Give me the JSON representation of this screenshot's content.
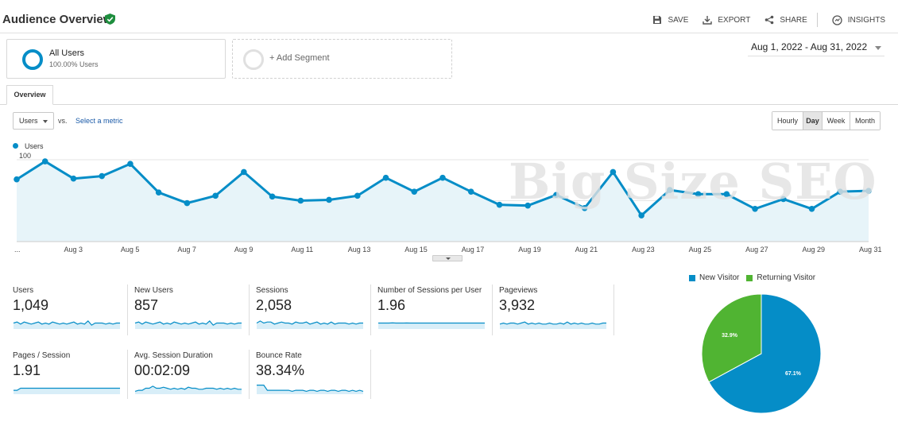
{
  "header": {
    "title": "Audience Overview",
    "actions": [
      "SAVE",
      "EXPORT",
      "SHARE",
      "INSIGHTS"
    ]
  },
  "segments": {
    "active": {
      "name": "All Users",
      "percent": "100.00% Users"
    },
    "add_label": "+ Add Segment"
  },
  "date_range": "Aug 1, 2022 - Aug 31, 2022",
  "tabs": [
    "Overview"
  ],
  "controls": {
    "metric": "Users",
    "vs": "vs.",
    "select_metric": "Select a metric",
    "periods": [
      "Hourly",
      "Day",
      "Week",
      "Month"
    ],
    "active_period": "Day"
  },
  "watermark": "Big Size SEO",
  "colors": {
    "accent": "#058dc7",
    "returning": "#50b432",
    "fill": "#e7f4f9"
  },
  "chart_data": [
    {
      "type": "area",
      "series": [
        {
          "name": "Users",
          "values": [
            76,
            98,
            77,
            80,
            95,
            60,
            47,
            56,
            85,
            55,
            50,
            51,
            56,
            78,
            61,
            78,
            61,
            45,
            44,
            57,
            41,
            85,
            32,
            63,
            58,
            58,
            40,
            52,
            40,
            61,
            62
          ]
        }
      ],
      "x": [
        "Aug 1",
        "Aug 2",
        "Aug 3",
        "Aug 4",
        "Aug 5",
        "Aug 6",
        "Aug 7",
        "Aug 8",
        "Aug 9",
        "Aug 10",
        "Aug 11",
        "Aug 12",
        "Aug 13",
        "Aug 14",
        "Aug 15",
        "Aug 16",
        "Aug 17",
        "Aug 18",
        "Aug 19",
        "Aug 20",
        "Aug 21",
        "Aug 22",
        "Aug 23",
        "Aug 24",
        "Aug 25",
        "Aug 26",
        "Aug 27",
        "Aug 28",
        "Aug 29",
        "Aug 30",
        "Aug 31"
      ],
      "x_tick_labels": [
        "...",
        "Aug 3",
        "Aug 5",
        "Aug 7",
        "Aug 9",
        "Aug 11",
        "Aug 13",
        "Aug 15",
        "Aug 17",
        "Aug 19",
        "Aug 21",
        "Aug 23",
        "Aug 25",
        "Aug 27",
        "Aug 29",
        "Aug 31"
      ],
      "y_ticks": [
        50,
        100
      ],
      "ylim": [
        0,
        100
      ],
      "grid": true,
      "legend": "top-left"
    },
    {
      "type": "pie",
      "labels": [
        "New Visitor",
        "Returning Visitor"
      ],
      "values": [
        67.1,
        32.9
      ],
      "value_labels": [
        "67.1%",
        "32.9%"
      ],
      "colors": [
        "#058dc7",
        "#50b432"
      ],
      "legend": "top"
    }
  ],
  "metrics": [
    {
      "name": "Users",
      "value": "1,049",
      "spark": [
        5,
        6,
        4,
        6,
        5,
        4,
        5,
        6,
        4,
        5,
        4,
        6,
        5,
        4,
        5,
        4,
        5,
        6,
        4,
        5,
        4,
        7,
        3,
        5,
        5,
        5,
        4,
        5,
        4,
        5,
        5
      ]
    },
    {
      "name": "New Users",
      "value": "857",
      "spark": [
        5,
        6,
        4,
        6,
        5,
        4,
        5,
        6,
        4,
        5,
        4,
        6,
        5,
        4,
        5,
        4,
        5,
        6,
        4,
        5,
        4,
        7,
        3,
        5,
        5,
        5,
        4,
        5,
        4,
        5,
        5
      ]
    },
    {
      "name": "Sessions",
      "value": "2,058",
      "spark": [
        5,
        7,
        5,
        6,
        6,
        4,
        5,
        6,
        5,
        5,
        4,
        6,
        5,
        5,
        6,
        4,
        5,
        6,
        4,
        5,
        4,
        6,
        4,
        5,
        5,
        5,
        4,
        5,
        4,
        5,
        5
      ]
    },
    {
      "name": "Number of Sessions per User",
      "value": "1.96",
      "spark": [
        5,
        5,
        5,
        5,
        5.2,
        5,
        5,
        5,
        5.1,
        5,
        5,
        5,
        5,
        5,
        5,
        5,
        5,
        5,
        5,
        5,
        5,
        5,
        5,
        5,
        5,
        5,
        5,
        5,
        5,
        5,
        5
      ]
    },
    {
      "name": "Pageviews",
      "value": "3,932",
      "spark": [
        4,
        5,
        4,
        5,
        5,
        4,
        5,
        6,
        4,
        5,
        4,
        5,
        4,
        4,
        5,
        4,
        4,
        5,
        4,
        6,
        4,
        5,
        4,
        5,
        4,
        4,
        5,
        4,
        4,
        5,
        5
      ]
    },
    {
      "name": "Pages / Session",
      "value": "1.91",
      "spark": [
        3,
        3,
        5,
        5,
        5,
        5,
        5,
        5,
        5,
        5,
        5,
        5,
        5,
        5,
        5,
        5,
        5,
        5,
        5,
        5,
        5,
        5,
        5,
        5,
        5,
        5,
        5,
        5,
        5,
        5,
        5
      ]
    },
    {
      "name": "Avg. Session Duration",
      "value": "00:02:09",
      "spark": [
        2,
        3,
        3,
        5,
        5,
        7,
        5,
        5,
        6,
        5,
        4,
        5,
        4,
        5,
        4,
        6,
        5,
        5,
        4,
        4,
        5,
        5,
        5,
        4,
        5,
        4,
        5,
        4,
        5,
        4,
        4
      ]
    },
    {
      "name": "Bounce Rate",
      "value": "38.34%",
      "spark": [
        8,
        8,
        8,
        3,
        3,
        3,
        3,
        3,
        3,
        3,
        2,
        3,
        3,
        3,
        2,
        3,
        3,
        2,
        3,
        3,
        2,
        3,
        3,
        2,
        3,
        3,
        2,
        3,
        2,
        3,
        2
      ]
    }
  ]
}
